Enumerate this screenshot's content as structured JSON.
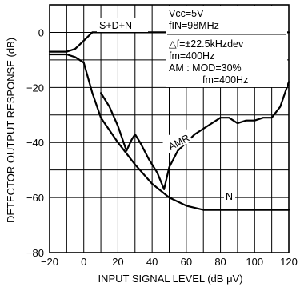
{
  "chart_data": {
    "type": "line",
    "title": "",
    "xlabel": "INPUT SIGNAL LEVEL (dB μV)",
    "ylabel": "DETECTOR OUTPUT RESPONSE (dB)",
    "xlim": [
      -20,
      120
    ],
    "ylim": [
      -80,
      10
    ],
    "xticks": [
      -20,
      0,
      20,
      40,
      60,
      80,
      100,
      120
    ],
    "yticks": [
      -80,
      -60,
      -40,
      -20,
      0
    ],
    "grid": true,
    "annotations": [
      "Vcc=5V",
      "fIN=98MHz",
      "△f=±22.5kHzdev",
      "fm=400Hz",
      "AM : MOD=30%",
      "fm=400Hz"
    ],
    "series": [
      {
        "name": "S+D+N",
        "x": [
          -20,
          -10,
          -5,
          0,
          5,
          10,
          15,
          30,
          60,
          90,
          120
        ],
        "y": [
          -7,
          -7,
          -6,
          -3,
          0,
          0,
          0,
          0,
          0,
          0,
          0
        ]
      },
      {
        "name": "N",
        "x": [
          -20,
          -10,
          -5,
          0,
          5,
          10,
          20,
          30,
          40,
          50,
          60,
          70,
          80,
          100,
          120
        ],
        "y": [
          -8,
          -8,
          -9,
          -11,
          -22,
          -31,
          -40,
          -48,
          -55,
          -60,
          -63,
          -64.5,
          -64.5,
          -64.5,
          -64.5
        ]
      },
      {
        "name": "AMR",
        "x": [
          10,
          15,
          20,
          25,
          28,
          30,
          33,
          38,
          43,
          47,
          50,
          55,
          60,
          65,
          70,
          75,
          80,
          85,
          90,
          95,
          100,
          105,
          110,
          115,
          120
        ],
        "y": [
          -22,
          -27,
          -34,
          -43,
          -39,
          -37,
          -40,
          -46,
          -51,
          -57,
          -49,
          -43,
          -40,
          -37,
          -35,
          -33,
          -31,
          -31,
          -33,
          -32,
          -32,
          -31,
          -31,
          -27,
          -18
        ]
      }
    ],
    "curve_labels": [
      "S+D+N",
      "AMR",
      "N"
    ]
  }
}
